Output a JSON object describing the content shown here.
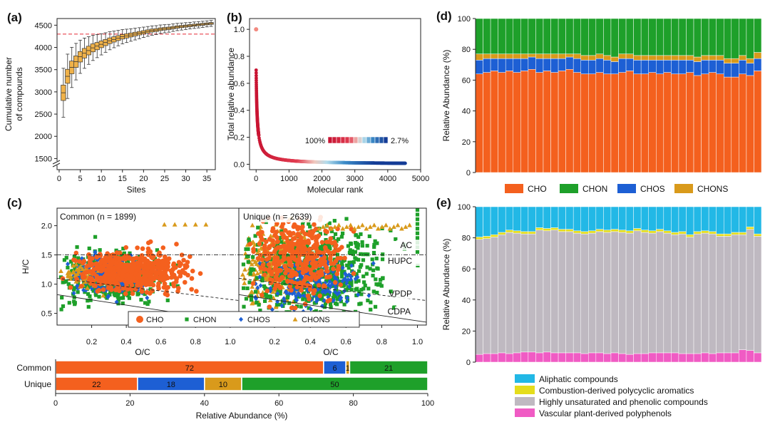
{
  "colors": {
    "CHO": "#f4601e",
    "CHON": "#1ea02a",
    "CHOS": "#1d5fd4",
    "CHONS": "#d99a1b",
    "aliphatic": "#22b8e6",
    "combustion": "#e5dd1c",
    "hupc": "#bfb9c1",
    "vascular": "#f05bc4",
    "box": "#f0b24a",
    "dash_red": "#e8414b"
  },
  "chart_data": [
    {
      "id": "a",
      "panel_label": "(a)",
      "type": "box",
      "xlabel": "Sites",
      "ylabel_lines": [
        "Cumulative number",
        "of compounds"
      ],
      "xlim": [
        -0.5,
        37
      ],
      "ylim": [
        1250,
        4650
      ],
      "xticks": [
        0,
        5,
        10,
        15,
        20,
        25,
        30,
        35
      ],
      "yticks": [
        1500,
        2000,
        2500,
        3000,
        3500,
        4000,
        4500
      ],
      "reference_line": 4300,
      "sites": [
        1,
        2,
        3,
        4,
        5,
        6,
        7,
        8,
        9,
        10,
        11,
        12,
        13,
        14,
        15,
        16,
        17,
        18,
        19,
        20,
        21,
        22,
        23,
        24,
        25,
        26,
        27,
        28,
        29,
        30,
        31,
        32,
        33,
        34,
        35,
        36
      ],
      "medians": [
        2980,
        3350,
        3550,
        3680,
        3790,
        3870,
        3930,
        3990,
        4030,
        4070,
        4110,
        4150,
        4180,
        4210,
        4240,
        4260,
        4280,
        4300,
        4320,
        4340,
        4360,
        4380,
        4390,
        4410,
        4420,
        4430,
        4445,
        4460,
        4470,
        4480,
        4490,
        4500,
        4510,
        4520,
        4530,
        4540
      ]
    },
    {
      "id": "b",
      "panel_label": "(b)",
      "type": "scatter",
      "xlabel": "Molecular rank",
      "ylabel": "Total relative abundance",
      "xlim": [
        -200,
        5000
      ],
      "ylim": [
        -0.04,
        1.08
      ],
      "xticks": [
        0,
        1000,
        2000,
        3000,
        4000,
        5000
      ],
      "yticks": [
        0.0,
        0.2,
        0.4,
        0.6,
        0.8,
        1.0
      ],
      "n_compounds": 4540,
      "colorbar_left": "100%",
      "colorbar_right": "2.7%"
    },
    {
      "id": "c",
      "panel_label": "(c)",
      "type": "scatter",
      "xlabel": "O/C",
      "ylabel": "H/C",
      "xticks": [
        0.2,
        0.4,
        0.6,
        0.8,
        1.0
      ],
      "yticks": [
        0.5,
        1.0,
        1.5,
        2.0
      ],
      "common_title": "Common (n = 1899)",
      "unique_title": "Unique (n = 2639)",
      "region_labels": [
        "AC",
        "HUPC",
        "VPDP",
        "CDPA"
      ],
      "legend": [
        {
          "name": "CHO",
          "marker": "circle"
        },
        {
          "name": "CHON",
          "marker": "square"
        },
        {
          "name": "CHOS",
          "marker": "diamond"
        },
        {
          "name": "CHONS",
          "marker": "triangle"
        }
      ]
    },
    {
      "id": "c_bar",
      "type": "stacked_bar_horizontal",
      "xlabel": "Relative Abundance (%)",
      "xlim": [
        0,
        100
      ],
      "xticks": [
        0,
        20,
        40,
        60,
        80,
        100
      ],
      "rows": [
        {
          "name": "Common",
          "segments": [
            {
              "class": "CHO",
              "value": 72,
              "label": "72"
            },
            {
              "class": "CHOS",
              "value": 6,
              "label": "6"
            },
            {
              "class": "CHONS",
              "value": 1,
              "label": "1"
            },
            {
              "class": "CHON",
              "value": 21,
              "label": "21"
            }
          ]
        },
        {
          "name": "Unique",
          "segments": [
            {
              "class": "CHO",
              "value": 22,
              "label": "22"
            },
            {
              "class": "CHOS",
              "value": 18,
              "label": "18"
            },
            {
              "class": "CHONS",
              "value": 10,
              "label": "10"
            },
            {
              "class": "CHON",
              "value": 50,
              "label": "50"
            }
          ]
        }
      ]
    },
    {
      "id": "d",
      "panel_label": "(d)",
      "type": "stacked_bar",
      "ylabel": "Relative Abundance (%)",
      "ylim": [
        0,
        100
      ],
      "yticks": [
        0,
        20,
        40,
        60,
        80,
        100
      ],
      "series_order": [
        "CHO",
        "CHOS",
        "CHONS",
        "CHON"
      ],
      "legend": [
        "CHO",
        "CHON",
        "CHOS",
        "CHONS"
      ],
      "cho": [
        64,
        65,
        66,
        65,
        66,
        65,
        66,
        67,
        65,
        66,
        65,
        66,
        67,
        65,
        64,
        64,
        65,
        64,
        64,
        65,
        66,
        64,
        64,
        65,
        64,
        65,
        64,
        64,
        65,
        63,
        64,
        65,
        64,
        62,
        62,
        64,
        63,
        66
      ],
      "chos": [
        9,
        9,
        8,
        9,
        8,
        9,
        8,
        8,
        9,
        8,
        9,
        8,
        8,
        9,
        9,
        9,
        9,
        9,
        8,
        9,
        8,
        9,
        9,
        8,
        9,
        8,
        9,
        9,
        8,
        9,
        9,
        8,
        9,
        9,
        9,
        9,
        8,
        8
      ],
      "chons": [
        4,
        3,
        3,
        3,
        3,
        3,
        3,
        2,
        3,
        3,
        3,
        3,
        2,
        3,
        3,
        3,
        3,
        3,
        3,
        3,
        3,
        3,
        3,
        3,
        3,
        3,
        3,
        3,
        3,
        3,
        3,
        3,
        3,
        3,
        3,
        3,
        3,
        4
      ]
    },
    {
      "id": "e",
      "panel_label": "(e)",
      "type": "stacked_bar",
      "ylabel": "Relative Abundance (%)",
      "ylim": [
        0,
        100
      ],
      "yticks": [
        0,
        20,
        40,
        60,
        80,
        100
      ],
      "legend": [
        "Aliphatic compounds",
        "Combustion-derived polycyclic aromatics",
        "Highly unsaturated and phenolic compounds",
        "Vascular plant-derived polyphenols"
      ],
      "vascular": [
        5,
        5.5,
        5.5,
        6,
        5.5,
        6,
        6.5,
        6.5,
        6,
        6.5,
        6,
        6,
        6,
        6,
        5.5,
        6,
        6,
        5.5,
        6,
        5.5,
        5,
        5.5,
        5.5,
        6,
        6,
        6,
        6,
        5.5,
        5.5,
        5.5,
        6,
        5.5,
        6,
        6,
        6,
        8,
        7.5,
        6
      ],
      "hupc": [
        74,
        74,
        75,
        76,
        78,
        77,
        76,
        76,
        79,
        78,
        79,
        78,
        78,
        77,
        77,
        77,
        78,
        78,
        78,
        78,
        78,
        79,
        78,
        77,
        78,
        77,
        76,
        77,
        75,
        77,
        77,
        77,
        75,
        75,
        76,
        74,
        78,
        75
      ],
      "combustion": [
        1.5,
        1.5,
        1.5,
        1.5,
        1.5,
        1.5,
        1.5,
        1.5,
        1.5,
        1.5,
        1.5,
        1.5,
        1.5,
        1.5,
        1.5,
        1.5,
        1.5,
        1.5,
        1.5,
        1.5,
        1.5,
        1.5,
        1.5,
        1.5,
        1.5,
        1.5,
        1.5,
        1.5,
        1.5,
        1.5,
        1.5,
        1.5,
        1.5,
        1.5,
        1.5,
        1.5,
        1.5,
        1.5
      ]
    }
  ]
}
